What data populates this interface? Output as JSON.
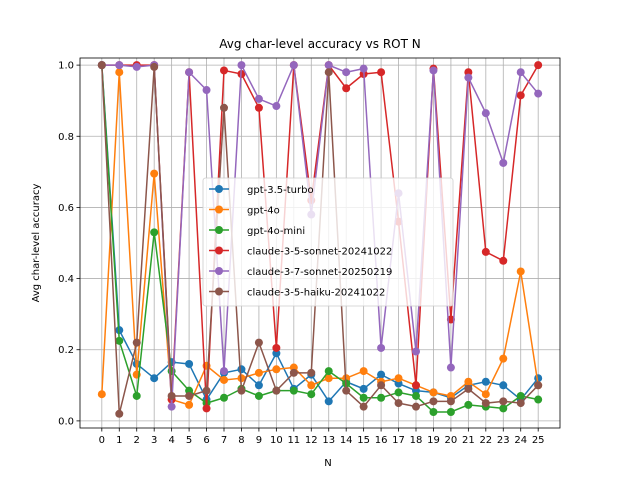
{
  "chart_data": {
    "type": "line",
    "title": "Avg char-level accuracy vs ROT N",
    "xlabel": "N",
    "ylabel": "Avg char-level accuracy",
    "x": [
      0,
      1,
      2,
      3,
      4,
      5,
      6,
      7,
      8,
      9,
      10,
      11,
      12,
      13,
      14,
      15,
      16,
      17,
      18,
      19,
      20,
      21,
      22,
      23,
      24,
      25
    ],
    "xlim": [
      -1.25,
      26.25
    ],
    "ylim": [
      -0.02,
      1.02
    ],
    "yticks": [
      0.0,
      0.2,
      0.4,
      0.6,
      0.8,
      1.0
    ],
    "ytick_labels": [
      "0.0",
      "0.2",
      "0.4",
      "0.6",
      "0.8",
      "1.0"
    ],
    "grid": true,
    "legend_position": "center",
    "series": [
      {
        "name": "gpt-3.5-turbo",
        "color": "#1f77b4",
        "values": [
          1.0,
          0.255,
          0.16,
          0.12,
          0.165,
          0.16,
          0.06,
          0.135,
          0.145,
          0.1,
          0.19,
          0.09,
          0.13,
          0.055,
          0.11,
          0.09,
          0.13,
          0.105,
          0.085,
          0.08,
          0.065,
          0.1,
          0.11,
          0.1,
          0.06,
          0.12
        ]
      },
      {
        "name": "gpt-4o",
        "color": "#ff7f0e",
        "values": [
          0.075,
          0.98,
          0.13,
          0.695,
          0.06,
          0.045,
          0.155,
          0.115,
          0.12,
          0.135,
          0.145,
          0.15,
          0.1,
          0.12,
          0.12,
          0.14,
          0.11,
          0.12,
          0.1,
          0.08,
          0.07,
          0.11,
          0.075,
          0.175,
          0.42,
          0.1
        ]
      },
      {
        "name": "gpt-4o-mini",
        "color": "#2ca02c",
        "values": [
          1.0,
          0.225,
          0.07,
          0.53,
          0.14,
          0.085,
          0.05,
          0.065,
          0.09,
          0.07,
          0.085,
          0.085,
          0.075,
          0.14,
          0.105,
          0.065,
          0.065,
          0.08,
          0.07,
          0.025,
          0.025,
          0.045,
          0.04,
          0.035,
          0.07,
          0.06
        ]
      },
      {
        "name": "claude-3-5-sonnet-20241022",
        "color": "#d62728",
        "values": [
          1.0,
          1.0,
          1.0,
          1.0,
          0.06,
          0.98,
          0.035,
          0.985,
          0.975,
          0.88,
          0.205,
          1.0,
          0.62,
          1.0,
          0.935,
          0.975,
          0.98,
          0.56,
          0.1,
          0.99,
          0.285,
          0.98,
          0.475,
          0.45,
          0.915,
          1.0
        ]
      },
      {
        "name": "claude-3-7-sonnet-20250219",
        "color": "#9467bd",
        "values": [
          1.0,
          1.0,
          0.995,
          1.0,
          0.04,
          0.98,
          0.93,
          0.14,
          1.0,
          0.905,
          0.885,
          1.0,
          0.58,
          1.0,
          0.98,
          0.99,
          0.205,
          0.64,
          0.195,
          0.985,
          0.15,
          0.965,
          0.865,
          0.725,
          0.98,
          0.92
        ]
      },
      {
        "name": "claude-3-5-haiku-20241022",
        "color": "#8c564b",
        "values": [
          1.0,
          0.02,
          0.22,
          0.995,
          0.07,
          0.07,
          0.085,
          0.88,
          0.085,
          0.22,
          0.085,
          0.135,
          0.135,
          0.98,
          0.085,
          0.04,
          0.1,
          0.05,
          0.04,
          0.055,
          0.055,
          0.09,
          0.05,
          0.055,
          0.05,
          0.1
        ]
      }
    ]
  }
}
